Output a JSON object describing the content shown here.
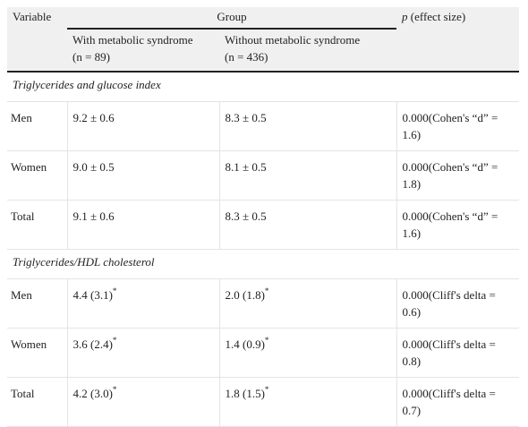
{
  "header": {
    "variable": "Variable",
    "group": "Group",
    "p_symbol": "p",
    "p_rest": "(effect size)",
    "with": {
      "name": "With metabolic syndrome",
      "n": "(n = 89)"
    },
    "without": {
      "name": "Without metabolic syndrome",
      "n": "(n = 436)"
    }
  },
  "sections": [
    {
      "title": "Triglycerides and glucose index",
      "rows": [
        {
          "label": "Men",
          "with": {
            "value": "9.2 ± 0.6"
          },
          "without": {
            "value": "8.3 ± 0.5"
          },
          "p": "0.000(Cohen's “d” = 1.6)"
        },
        {
          "label": "Women",
          "with": {
            "value": "9.0 ± 0.5"
          },
          "without": {
            "value": "8.1 ± 0.5"
          },
          "p": "0.000(Cohen's “d” = 1.8)"
        },
        {
          "label": "Total",
          "with": {
            "value": "9.1 ± 0.6"
          },
          "without": {
            "value": "8.3 ± 0.5"
          },
          "p": "0.000(Cohen's “d” = 1.6)"
        }
      ]
    },
    {
      "title": "Triglycerides/HDL cholesterol",
      "rows": [
        {
          "label": "Men",
          "with": {
            "value": "4.4 (3.1)",
            "mark": "*"
          },
          "without": {
            "value": "2.0 (1.8)",
            "mark": "*"
          },
          "p": "0.000(Cliff's delta = 0.6)"
        },
        {
          "label": "Women",
          "with": {
            "value": "3.6 (2.4)",
            "mark": "*"
          },
          "without": {
            "value": "1.4 (0.9)",
            "mark": "*"
          },
          "p": "0.000(Cliff's delta = 0.8)"
        },
        {
          "label": "Total",
          "with": {
            "value": "4.2 (3.0)",
            "mark": "*"
          },
          "without": {
            "value": "1.8 (1.5)",
            "mark": "*"
          },
          "p": "0.000(Cliff's delta = 0.7)"
        }
      ]
    }
  ]
}
